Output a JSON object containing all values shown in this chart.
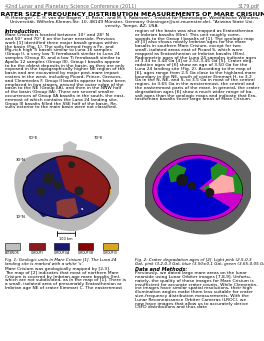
{
  "header_left": "42nd Lunar and Planetary Science Conference (2011)",
  "header_right": "3179.pdf",
  "title": "CRATER SIZE-FREQUENCY DISTRIBUTION MEASUREMENTS OF MARE CRISIUM.",
  "authors": " H. Hiesinger¹, C. H. van der Bogert¹, D. Reiss¹, and M. S. Robinson², ¹Institut für Planetologie, Westfälische Wilhelms-Universität, Wilhelm-Klemm-Str. 10, 48149 Münster, Germany (hiesinger@uni-muenster.de), ²Arizona State University, Tempe, AZ, USA.",
  "intro_label": "Introduction:",
  "right_text_lines": [
    "region of the basin was also mapped as Eratosthenian",
    "or Imbrian basalts (EIm). This unit roughly corre-",
    "sponds to the Group I basalts of [1]. The geologic map",
    "of [3] also shows mostly Imbrian ages for the mare",
    "basalts in southern Mare Crisium, except for two",
    "small, isolated areas east of Picard S, which were",
    "mapped as Eratosthenian or Imbrian basalts (EIm).",
    "Radiometric ages of the Luna 24 samples indicate ages",
    "of 3.34 to 3.44 Ga [4] or 2.52-3.45 Ga [5]. Crater deg-",
    "radation ages of [6] show an age of 3.50 Ga for the",
    "Luna 24 landing site (Fig. 2). According to the map of",
    "[6], ages range from 2.5 Ga close to the highland-mare",
    "boundary in the NE, south of crater Eimmart H, to 3.2",
    "Ga in the N, NE, and S, to 3.5 Ga in most of the central",
    "region, to 3.65 Ga in the westernmost, the central and",
    "the easternmost parts of the mare. In general, the crater",
    "degradation ages [6] show a much wider range of ba-",
    "salt ages than the geologic maps and indicate that Era-",
    "tosthenian basalts cover large areas of Mare Crisium."
  ],
  "intro_lines": [
    "Mare Crisium is located between 10° and 28° N",
    "and 50° and 70° E on the lunar nearside. Previous",
    "work [1] identified three major basalt groups within",
    "the basin (Fig. 1). The soils formed from a Fe- and",
    "Mg-rich high Ti basalt similar to Luna 16 samples",
    "(Group I), a very low Ti ferrobasalt similar to Luna 24",
    "samples (Group II), and a low Ti ferrobasalt similar to",
    "Apollo 12 samples (Group III). Group I basalts appear",
    "to be the oldest deposits in the basin, as they are only",
    "exposed in the topographically higher NE region of the",
    "basin and are excavated by major post-mare impact",
    "craters in the west, including Picard, Prince, Greaves,",
    "and Cleomedes F. Group II basalts appear to have been",
    "emplaced in two stages, around the outer edge of the",
    "basin to the NE (Group IIA), and then in the NNW half",
    "of the basin (Group IIA). There are several smaller",
    "occurrences of Group IIA basalts in the south, the east-",
    "ernmost of which contains the Luna 24 landing site.",
    "Group III basalts filled the SSE half of the basin. Re-",
    "sults exterior to the main basin were not classified."
  ],
  "fig1_caption_lines": [
    "Fig. 1: Geologic units in Mare Crisium [1]. The Luna 24",
    "landing site is marked with a white ‘s’."
  ],
  "fig2_caption_lines": [
    "Fig. 2: Crater degradation ages of [2]. Light pink (2.5-0.3",
    "Ga), pink (3.2-0.3 Ga), blue (3.50±0.1 Ga), green (3.65-0.05 Ga)."
  ],
  "cont_text_lines": [
    "Mare Crisium was geologically mapped by [2,3].",
    "The map of [2] indicates that most of northern Mare",
    "Crisium is covered by Imbrian-age mare basalts (Im),",
    "which are not subdivided, as in the map of [1]. There is",
    "a small, isolated area of presumably Eratosthenian or",
    "Imbrian age NE of crater Eimmart C. The easternmost"
  ],
  "data_methods_label": "Data and Methods:",
  "data_methods_lines": [
    "Previously, we dated large mare areas on the lunar",
    "nearside using Lunar Orbiter images [7,8,9]. Unfortu-",
    "nately, the quality of those images for Mare Crisium is",
    "insufficient for accurate crater counts. While Clementin-",
    "ine images have similar spatial resolutions, their high",
    "illumination angles make them less suitable for crater",
    "size-frequency distribution measurements. With the",
    "Lunar Reconnaissance Orbiter Cameras (LROC), we",
    "now have images that allow us to accurately derive",
    "CSFD distributions and thus date"
  ],
  "legend_items": [
    {
      "label": "EXTERIOR",
      "color": "#c0c0c0"
    },
    {
      "label": "GROUP I",
      "color": "#8b1a1a"
    },
    {
      "label": "GROUP IIA",
      "color": "#191970"
    },
    {
      "label": "GROUP IIB",
      "color": "#8b0000"
    },
    {
      "label": "GROUP III",
      "color": "#daa520"
    }
  ],
  "background_color": "#ffffff",
  "fig1_coords": {
    "lat_labels": [
      "30°N",
      "10°N"
    ],
    "lon_labels": [
      "50°E",
      "70°E"
    ]
  }
}
